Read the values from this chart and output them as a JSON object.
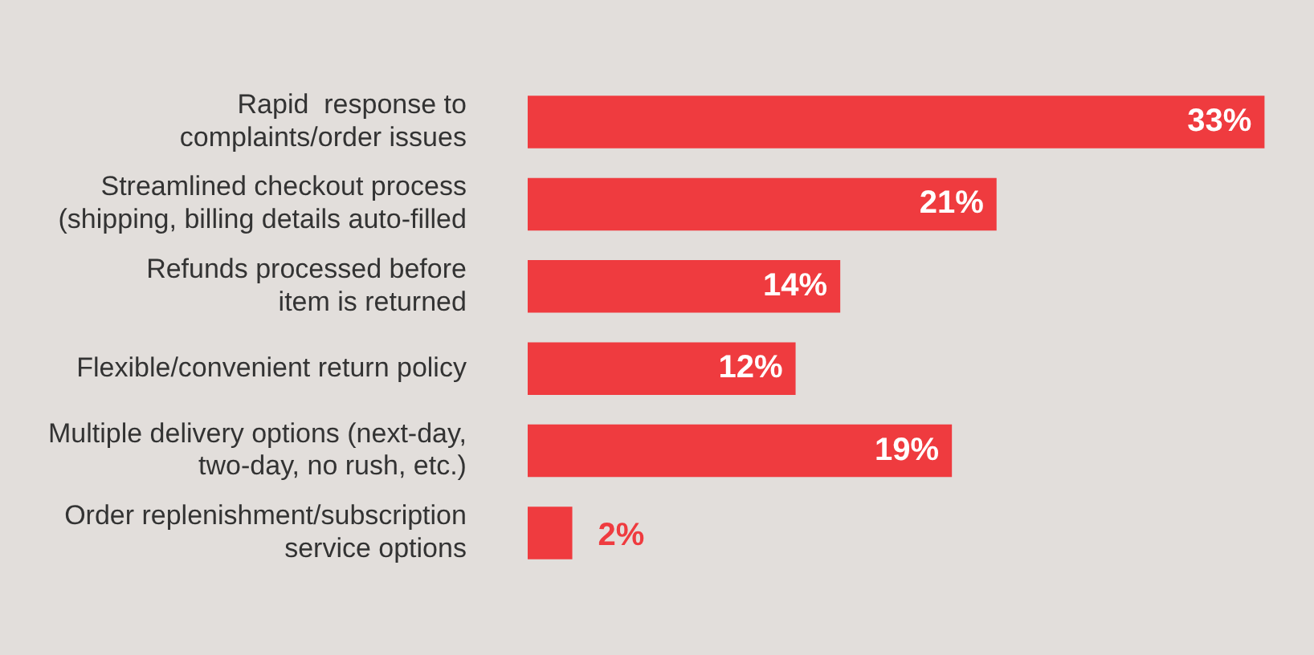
{
  "chart_data": {
    "type": "bar",
    "orientation": "horizontal",
    "categories": [
      "Rapid  response to\ncomplaints/order issues",
      "Streamlined checkout process\n(shipping, billing details auto-filled",
      "Refunds processed before\nitem is returned",
      "Flexible/convenient return policy",
      "Multiple delivery options (next-day,\ntwo-day, no rush, etc.)",
      "Order replenishment/subscription\nservice options"
    ],
    "values": [
      33,
      21,
      14,
      12,
      19,
      2
    ],
    "value_labels": [
      "33%",
      "21%",
      "14%",
      "12%",
      "19%",
      "2%"
    ],
    "color": "#ef3b3f"
  }
}
